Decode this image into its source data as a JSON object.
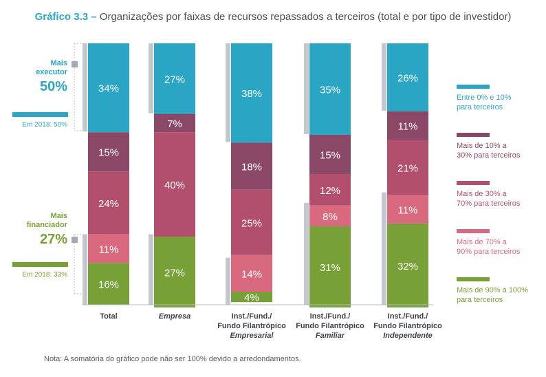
{
  "title": {
    "lead": "Gráfico 3.3 –",
    "text": " Organizações por faixas de recursos repassados a terceiros (total e por tipo de investidor)"
  },
  "note": "Nota: A somatória do gráfico pode não ser 100% devido a arredondamentos.",
  "left_annotations": {
    "executor": {
      "label_line1": "Mais",
      "label_line2": "executor",
      "value": "50%",
      "ref_label": "Em 2018: 50%",
      "color": "#2aa6c4",
      "reference_pct": 50
    },
    "financiador": {
      "label_line1": "Mais",
      "label_line2": "financiador",
      "value": "27%",
      "ref_label": "Em 2018: 33%",
      "color": "#77a136",
      "reference_pct": 33
    }
  },
  "chart_data": {
    "type": "bar",
    "stacked": true,
    "orientation": "vertical",
    "ylim": [
      0,
      100
    ],
    "categories": [
      {
        "line1": "Total",
        "line2": "",
        "line3": "",
        "italic": false
      },
      {
        "line1": "Empresa",
        "line2": "",
        "line3": "",
        "italic": true
      },
      {
        "line1": "Inst./Fund./",
        "line2": "Fundo Filantrópico",
        "line3": "Empresarial",
        "italic": true
      },
      {
        "line1": "Inst./Fund./",
        "line2": "Fundo Filantrópico",
        "line3": "Familiar",
        "italic": true
      },
      {
        "line1": "Inst./Fund./",
        "line2": "Fundo Filantrópico",
        "line3": "Independente",
        "italic": true
      }
    ],
    "series": [
      {
        "name": "Entre 0% e 10% para terceiros",
        "legend_line1": "Entre 0% e 10%",
        "legend_line2": "para terceiros",
        "color": "#2aa6c4",
        "values": [
          34,
          27,
          38,
          35,
          26
        ]
      },
      {
        "name": "Mais de 10% a 30% para terceiros",
        "legend_line1": "Mais de 10% a",
        "legend_line2": "30% para terceiros",
        "color": "#8b4866",
        "values": [
          15,
          7,
          18,
          15,
          11
        ]
      },
      {
        "name": "Mais de 30% a 70% para terceiros",
        "legend_line1": "Mais de 30% a",
        "legend_line2": "70% para terceiros",
        "color": "#b14f6c",
        "values": [
          24,
          40,
          25,
          12,
          21
        ]
      },
      {
        "name": "Mais de 70% a 90% para terceiros",
        "legend_line1": "Mais de 70% a",
        "legend_line2": "90% para terceiros",
        "color": "#d9697f",
        "values": [
          11,
          0,
          14,
          8,
          11
        ]
      },
      {
        "name": "Mais de 90% a 100% para terceiros",
        "legend_line1": "Mais de 90% a 100%",
        "legend_line2": "para terceiros",
        "color": "#77a136",
        "values": [
          16,
          27,
          4,
          31,
          32
        ]
      }
    ],
    "value_labels": [
      [
        "34%",
        "27%",
        "38%",
        "35%",
        "26%"
      ],
      [
        "15%",
        "7%",
        "18%",
        "15%",
        "11%"
      ],
      [
        "24%",
        "40%",
        "25%",
        "12%",
        "21%"
      ],
      [
        "11%",
        "",
        "14%",
        "8%",
        "11%"
      ],
      [
        "16%",
        "27%",
        "4%",
        "31%",
        "32%"
      ]
    ],
    "reference_bars": true,
    "legend_position": "right"
  }
}
